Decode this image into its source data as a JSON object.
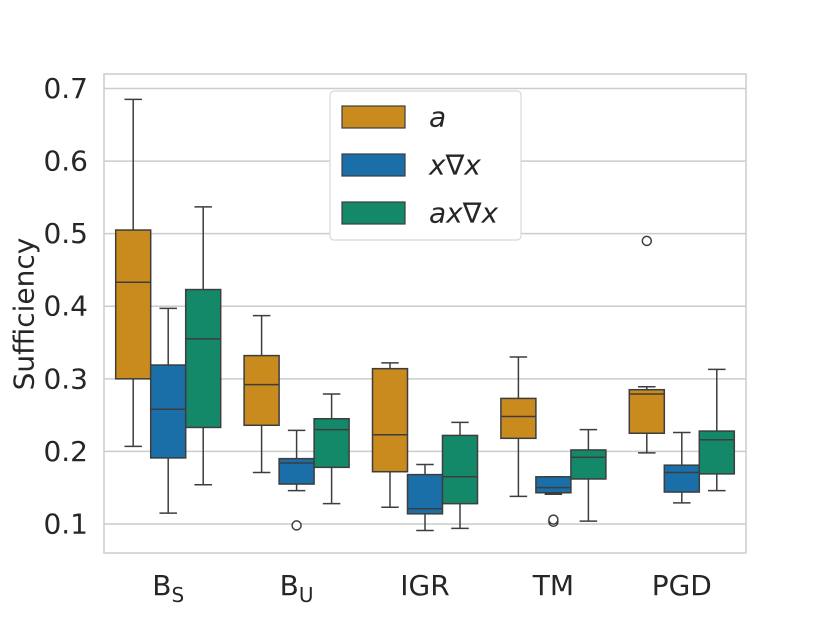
{
  "chart_data": {
    "type": "box",
    "title": "",
    "xlabel": "",
    "ylabel": "Sufficiency",
    "ylim": [
      0.06,
      0.72
    ],
    "yticks": [
      0.1,
      0.2,
      0.3,
      0.4,
      0.5,
      0.6,
      0.7
    ],
    "ytick_labels": [
      "0.1",
      "0.2",
      "0.3",
      "0.4",
      "0.5",
      "0.6",
      "0.7"
    ],
    "grid": true,
    "legend_position": "top-center",
    "categories": [
      {
        "base": "B",
        "sub": "S"
      },
      {
        "base": "B",
        "sub": "U"
      },
      {
        "base": "IGR",
        "sub": ""
      },
      {
        "base": "TM",
        "sub": ""
      },
      {
        "base": "PGD",
        "sub": ""
      }
    ],
    "series": [
      {
        "name": "a",
        "color": "#c98a1e",
        "boxes": [
          {
            "whisker_low": 0.207,
            "q1": 0.3,
            "median": 0.433,
            "q3": 0.505,
            "whisker_high": 0.685,
            "outliers": []
          },
          {
            "whisker_low": 0.171,
            "q1": 0.236,
            "median": 0.292,
            "q3": 0.332,
            "whisker_high": 0.387,
            "outliers": []
          },
          {
            "whisker_low": 0.123,
            "q1": 0.172,
            "median": 0.223,
            "q3": 0.314,
            "whisker_high": 0.322,
            "outliers": []
          },
          {
            "whisker_low": 0.138,
            "q1": 0.218,
            "median": 0.248,
            "q3": 0.273,
            "whisker_high": 0.33,
            "outliers": []
          },
          {
            "whisker_low": 0.198,
            "q1": 0.225,
            "median": 0.279,
            "q3": 0.285,
            "whisker_high": 0.289,
            "outliers": [
              0.49
            ]
          }
        ]
      },
      {
        "name": "x∇x",
        "color": "#1b6fa8",
        "boxes": [
          {
            "whisker_low": 0.115,
            "q1": 0.191,
            "median": 0.258,
            "q3": 0.319,
            "whisker_high": 0.397,
            "outliers": []
          },
          {
            "whisker_low": 0.146,
            "q1": 0.155,
            "median": 0.184,
            "q3": 0.19,
            "whisker_high": 0.229,
            "outliers": [
              0.098
            ]
          },
          {
            "whisker_low": 0.091,
            "q1": 0.114,
            "median": 0.121,
            "q3": 0.168,
            "whisker_high": 0.182,
            "outliers": []
          },
          {
            "whisker_low": 0.141,
            "q1": 0.143,
            "median": 0.15,
            "q3": 0.165,
            "whisker_high": 0.165,
            "outliers": [
              0.103,
              0.106
            ]
          },
          {
            "whisker_low": 0.129,
            "q1": 0.144,
            "median": 0.171,
            "q3": 0.181,
            "whisker_high": 0.226,
            "outliers": []
          }
        ]
      },
      {
        "name": "ax∇x",
        "color": "#14896a",
        "boxes": [
          {
            "whisker_low": 0.154,
            "q1": 0.233,
            "median": 0.355,
            "q3": 0.423,
            "whisker_high": 0.537,
            "outliers": []
          },
          {
            "whisker_low": 0.128,
            "q1": 0.178,
            "median": 0.23,
            "q3": 0.245,
            "whisker_high": 0.279,
            "outliers": []
          },
          {
            "whisker_low": 0.094,
            "q1": 0.128,
            "median": 0.165,
            "q3": 0.222,
            "whisker_high": 0.24,
            "outliers": []
          },
          {
            "whisker_low": 0.104,
            "q1": 0.162,
            "median": 0.192,
            "q3": 0.202,
            "whisker_high": 0.23,
            "outliers": []
          },
          {
            "whisker_low": 0.146,
            "q1": 0.169,
            "median": 0.216,
            "q3": 0.228,
            "whisker_high": 0.313,
            "outliers": []
          }
        ]
      }
    ]
  }
}
